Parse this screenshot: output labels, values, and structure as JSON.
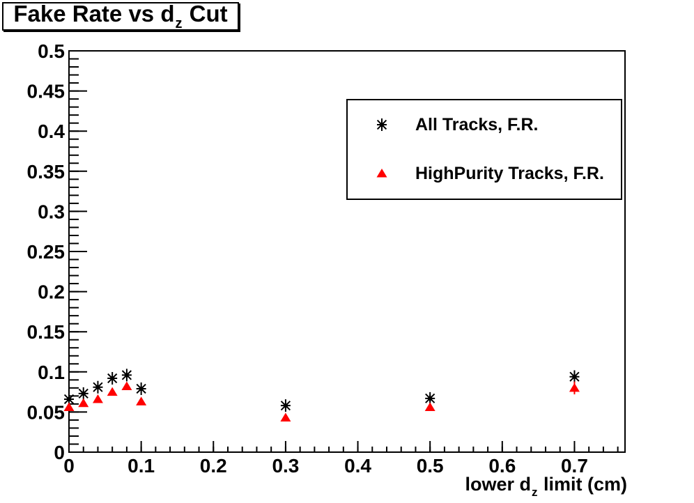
{
  "title": {
    "pre": "Fake Rate vs d",
    "sub": "z",
    "post": " Cut"
  },
  "axes": {
    "x": {
      "title_pre": "lower d",
      "title_sub": "z",
      "title_post": " limit (cm)",
      "tick_labels": [
        "0",
        "0.1",
        "0.2",
        "0.3",
        "0.4",
        "0.5",
        "0.6",
        "0.7"
      ],
      "major_step": 0.1,
      "minor_step": 0.02,
      "min": 0,
      "max": 0.77
    },
    "y": {
      "tick_labels": [
        "0",
        "0.05",
        "0.1",
        "0.15",
        "0.2",
        "0.25",
        "0.3",
        "0.35",
        "0.4",
        "0.45",
        "0.5"
      ],
      "major_step": 0.05,
      "minor_step": 0.01,
      "min": 0,
      "max": 0.5
    }
  },
  "legend": {
    "entries": [
      {
        "label": "All Tracks, F.R.",
        "marker": "asterisk",
        "color": "#000000"
      },
      {
        "label": "HighPurity Tracks, F.R.",
        "marker": "triangle",
        "color": "#ff0000"
      }
    ]
  },
  "colors": {
    "background": "#ffffff",
    "frame": "#000000",
    "series_all_tracks": "#000000",
    "series_highpurity": "#ff0000"
  },
  "chart_data": {
    "type": "scatter",
    "title": "Fake Rate vs d_z Cut",
    "xlabel": "lower d_z limit (cm)",
    "ylabel": "",
    "xlim": [
      0,
      0.77
    ],
    "ylim": [
      0,
      0.5
    ],
    "grid": false,
    "legend_position": "upper right",
    "x": [
      0,
      0.02,
      0.04,
      0.06,
      0.08,
      0.1,
      0.3,
      0.5,
      0.7
    ],
    "series": [
      {
        "name": "All Tracks, F.R.",
        "marker": "asterisk",
        "color": "#000000",
        "values": [
          0.066,
          0.073,
          0.081,
          0.092,
          0.096,
          0.079,
          0.058,
          0.067,
          0.094
        ],
        "yerr": [
          0.002,
          0.002,
          0.002,
          0.002,
          0.002,
          0.002,
          0.003,
          0.004,
          0.008
        ]
      },
      {
        "name": "HighPurity Tracks, F.R.",
        "marker": "triangle",
        "color": "#ff0000",
        "values": [
          0.056,
          0.061,
          0.066,
          0.075,
          0.082,
          0.063,
          0.043,
          0.056,
          0.08
        ],
        "yerr": [
          0.002,
          0.002,
          0.002,
          0.002,
          0.002,
          0.002,
          0.003,
          0.004,
          0.008
        ]
      }
    ]
  }
}
